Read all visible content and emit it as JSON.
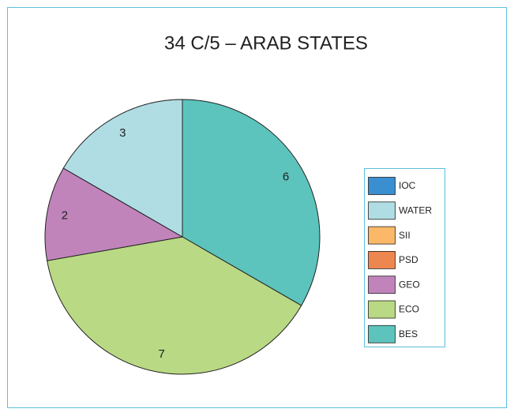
{
  "chart_data": {
    "type": "pie",
    "title": "34 C/5 – ARAB STATES",
    "categories": [
      "IOC",
      "WATER",
      "SII",
      "PSD",
      "GEO",
      "ECO",
      "BES"
    ],
    "values": [
      0,
      3,
      0,
      0,
      2,
      7,
      6
    ],
    "colors": [
      "#3a8fd0",
      "#b0dde4",
      "#fbb868",
      "#ee8650",
      "#c084bb",
      "#b9d984",
      "#5cc4bc"
    ],
    "legend": "right"
  }
}
